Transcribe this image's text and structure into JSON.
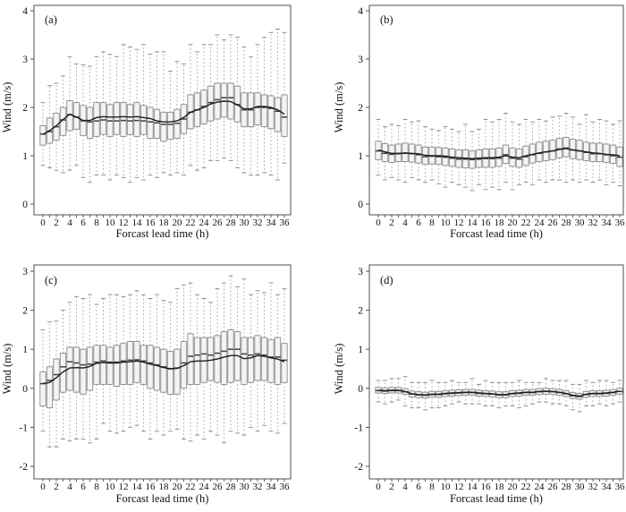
{
  "figure": {
    "background": "#ffffff",
    "colors": {
      "axis": "#4f4f4f",
      "text": "#111111",
      "box_fill": "#f4f4f4",
      "box_edge": "#8c8c8c",
      "whisker": "#a8a8a8",
      "cap": "#8f8f8f",
      "median": "#3f3f3f",
      "mean_line": "#1c1c1c"
    }
  },
  "chart_data": [
    {
      "type": "boxplot",
      "panel_label": "(a)",
      "xlabel": "Forcast lead time (h)",
      "ylabel": "Wind (m/s)",
      "ylim": [
        0,
        4
      ],
      "yticks": [
        0,
        1,
        2,
        3,
        4
      ],
      "xlim": [
        0,
        36
      ],
      "xtick_labeled_step": 2,
      "xtick_minor_step": 1,
      "grid": false,
      "x": [
        0,
        1,
        2,
        3,
        4,
        5,
        6,
        7,
        8,
        9,
        10,
        11,
        12,
        13,
        14,
        15,
        16,
        17,
        18,
        19,
        20,
        21,
        22,
        23,
        24,
        25,
        26,
        27,
        28,
        29,
        30,
        31,
        32,
        33,
        34,
        35,
        36
      ],
      "series": {
        "whisker_low": [
          0.8,
          0.75,
          0.7,
          0.65,
          0.7,
          0.8,
          0.55,
          0.45,
          0.6,
          0.6,
          0.5,
          0.6,
          0.55,
          0.45,
          0.55,
          0.5,
          0.6,
          0.55,
          0.65,
          0.6,
          0.65,
          0.6,
          0.8,
          0.7,
          0.75,
          0.9,
          0.9,
          0.95,
          0.9,
          0.75,
          0.65,
          0.6,
          0.6,
          0.65,
          0.6,
          0.5,
          0.85
        ],
        "q1": [
          1.22,
          1.26,
          1.32,
          1.42,
          1.52,
          1.55,
          1.42,
          1.36,
          1.4,
          1.44,
          1.4,
          1.44,
          1.4,
          1.44,
          1.4,
          1.44,
          1.36,
          1.36,
          1.3,
          1.34,
          1.36,
          1.46,
          1.56,
          1.6,
          1.66,
          1.72,
          1.76,
          1.8,
          1.76,
          1.7,
          1.6,
          1.6,
          1.64,
          1.6,
          1.56,
          1.5,
          1.4
        ],
        "median": [
          1.45,
          1.5,
          1.6,
          1.74,
          1.85,
          1.8,
          1.72,
          1.7,
          1.72,
          1.74,
          1.72,
          1.72,
          1.73,
          1.72,
          1.73,
          1.72,
          1.7,
          1.68,
          1.65,
          1.65,
          1.67,
          1.76,
          1.9,
          1.95,
          2.02,
          2.1,
          2.16,
          2.2,
          2.2,
          2.06,
          1.95,
          1.95,
          2.0,
          2.0,
          1.98,
          1.92,
          1.8
        ],
        "q3": [
          1.62,
          1.78,
          1.88,
          2.0,
          2.14,
          2.1,
          2.04,
          2.0,
          2.1,
          2.1,
          2.06,
          2.1,
          2.1,
          2.06,
          2.1,
          2.04,
          2.0,
          1.96,
          1.9,
          1.9,
          1.96,
          2.06,
          2.26,
          2.3,
          2.36,
          2.44,
          2.5,
          2.5,
          2.5,
          2.44,
          2.3,
          2.3,
          2.3,
          2.26,
          2.24,
          2.2,
          2.26
        ],
        "whisker_high": [
          2.1,
          2.45,
          2.5,
          2.65,
          3.05,
          2.9,
          2.88,
          2.85,
          3.05,
          3.15,
          3.1,
          3.05,
          3.3,
          3.25,
          3.2,
          3.3,
          3.1,
          3.15,
          3.15,
          2.75,
          2.95,
          2.9,
          3.3,
          3.15,
          3.3,
          3.3,
          3.5,
          3.4,
          3.5,
          3.45,
          3.25,
          3.05,
          3.3,
          3.45,
          3.55,
          3.62,
          3.55
        ],
        "mean_line": [
          1.44,
          1.52,
          1.62,
          1.75,
          1.86,
          1.8,
          1.73,
          1.73,
          1.79,
          1.81,
          1.8,
          1.8,
          1.81,
          1.8,
          1.81,
          1.79,
          1.77,
          1.72,
          1.7,
          1.7,
          1.72,
          1.79,
          1.9,
          1.95,
          2.0,
          2.07,
          2.11,
          2.13,
          2.12,
          2.05,
          1.97,
          1.97,
          2.02,
          2.02,
          2.0,
          1.95,
          1.86
        ]
      }
    },
    {
      "type": "boxplot",
      "panel_label": "(b)",
      "xlabel": "Forcast lead time (h)",
      "ylabel": "Wind (m/s)",
      "ylim": [
        0,
        4
      ],
      "yticks": [
        0,
        1,
        2,
        3,
        4
      ],
      "xlim": [
        0,
        36
      ],
      "xtick_labeled_step": 2,
      "xtick_minor_step": 1,
      "grid": false,
      "x": [
        0,
        1,
        2,
        3,
        4,
        5,
        6,
        7,
        8,
        9,
        10,
        11,
        12,
        13,
        14,
        15,
        16,
        17,
        18,
        19,
        20,
        21,
        22,
        23,
        24,
        25,
        26,
        27,
        28,
        29,
        30,
        31,
        32,
        33,
        34,
        35,
        36
      ],
      "series": {
        "whisker_low": [
          0.6,
          0.5,
          0.55,
          0.5,
          0.45,
          0.55,
          0.5,
          0.45,
          0.5,
          0.42,
          0.35,
          0.45,
          0.4,
          0.35,
          0.28,
          0.4,
          0.3,
          0.35,
          0.3,
          0.45,
          0.3,
          0.4,
          0.45,
          0.4,
          0.5,
          0.45,
          0.5,
          0.5,
          0.45,
          0.5,
          0.45,
          0.5,
          0.45,
          0.5,
          0.4,
          0.45,
          0.38
        ],
        "q1": [
          0.92,
          0.88,
          0.86,
          0.88,
          0.88,
          0.87,
          0.85,
          0.82,
          0.83,
          0.82,
          0.8,
          0.78,
          0.76,
          0.75,
          0.74,
          0.76,
          0.76,
          0.76,
          0.78,
          0.84,
          0.78,
          0.76,
          0.8,
          0.85,
          0.88,
          0.9,
          0.92,
          0.96,
          0.98,
          0.94,
          0.92,
          0.9,
          0.88,
          0.88,
          0.86,
          0.84,
          0.78
        ],
        "median": [
          1.1,
          1.05,
          1.03,
          1.04,
          1.05,
          1.04,
          1.02,
          0.98,
          0.99,
          0.98,
          0.97,
          0.95,
          0.93,
          0.93,
          0.92,
          0.93,
          0.94,
          0.94,
          0.95,
          1.02,
          0.95,
          0.93,
          0.98,
          1.02,
          1.05,
          1.08,
          1.1,
          1.14,
          1.16,
          1.12,
          1.1,
          1.07,
          1.04,
          1.04,
          1.02,
          1.0,
          0.97
        ],
        "q3": [
          1.3,
          1.25,
          1.22,
          1.24,
          1.26,
          1.24,
          1.22,
          1.18,
          1.18,
          1.17,
          1.16,
          1.14,
          1.12,
          1.12,
          1.1,
          1.12,
          1.14,
          1.14,
          1.16,
          1.22,
          1.16,
          1.14,
          1.2,
          1.24,
          1.28,
          1.3,
          1.32,
          1.36,
          1.38,
          1.34,
          1.32,
          1.28,
          1.26,
          1.26,
          1.24,
          1.22,
          1.18
        ],
        "whisker_high": [
          1.75,
          1.6,
          1.65,
          1.62,
          1.75,
          1.7,
          1.72,
          1.6,
          1.55,
          1.52,
          1.6,
          1.55,
          1.5,
          1.65,
          1.5,
          1.55,
          1.75,
          1.7,
          1.75,
          1.88,
          1.7,
          1.65,
          1.75,
          1.7,
          1.75,
          1.72,
          1.8,
          1.82,
          1.88,
          1.8,
          1.65,
          1.85,
          1.7,
          1.75,
          1.72,
          1.65,
          1.72
        ],
        "mean_line": [
          1.12,
          1.08,
          1.05,
          1.05,
          1.06,
          1.05,
          1.04,
          1.01,
          1.0,
          1.0,
          0.99,
          0.97,
          0.96,
          0.95,
          0.94,
          0.95,
          0.96,
          0.96,
          0.97,
          1.0,
          0.97,
          0.96,
          1.0,
          1.03,
          1.06,
          1.08,
          1.1,
          1.13,
          1.15,
          1.12,
          1.1,
          1.08,
          1.06,
          1.05,
          1.03,
          1.02,
          1.0
        ]
      }
    },
    {
      "type": "boxplot",
      "panel_label": "(c)",
      "xlabel": "Forcast lead time (h)",
      "ylabel": "Wind (m/s)",
      "ylim": [
        -2,
        3
      ],
      "yticks": [
        -2,
        -1,
        0,
        1,
        2,
        3
      ],
      "xlim": [
        0,
        36
      ],
      "xtick_labeled_step": 2,
      "xtick_minor_step": 1,
      "grid": false,
      "x": [
        0,
        1,
        2,
        3,
        4,
        5,
        6,
        7,
        8,
        9,
        10,
        11,
        12,
        13,
        14,
        15,
        16,
        17,
        18,
        19,
        20,
        21,
        22,
        23,
        24,
        25,
        26,
        27,
        28,
        29,
        30,
        31,
        32,
        33,
        34,
        35,
        36
      ],
      "series": {
        "whisker_low": [
          -1.1,
          -1.5,
          -1.5,
          -1.3,
          -1.35,
          -1.3,
          -1.3,
          -1.4,
          -1.3,
          -0.9,
          -1.1,
          -1.15,
          -1.1,
          -1.0,
          -0.95,
          -1.1,
          -1.3,
          -1.1,
          -1.2,
          -1.1,
          -1.05,
          -1.3,
          -1.35,
          -1.2,
          -1.3,
          -1.1,
          -1.2,
          -1.4,
          -1.1,
          -1.15,
          -1.2,
          -1.0,
          -1.1,
          -0.95,
          -1.1,
          -1.15,
          -0.9
        ],
        "q1": [
          -0.45,
          -0.5,
          -0.3,
          -0.1,
          -0.05,
          -0.1,
          -0.15,
          -0.05,
          0.1,
          0.1,
          0.1,
          0.05,
          0.1,
          0.1,
          0.15,
          0.1,
          0.0,
          -0.05,
          -0.1,
          -0.15,
          -0.15,
          0.0,
          0.1,
          0.1,
          0.15,
          0.2,
          0.15,
          0.1,
          0.15,
          0.2,
          0.1,
          0.15,
          0.2,
          0.2,
          0.15,
          0.1,
          0.15
        ],
        "median": [
          0.12,
          0.2,
          0.35,
          0.55,
          0.68,
          0.65,
          0.6,
          0.62,
          0.67,
          0.7,
          0.67,
          0.67,
          0.7,
          0.72,
          0.73,
          0.7,
          0.65,
          0.6,
          0.55,
          0.5,
          0.52,
          0.65,
          0.82,
          0.85,
          0.88,
          0.85,
          0.9,
          0.95,
          1.0,
          1.0,
          0.88,
          0.85,
          0.88,
          0.85,
          0.8,
          0.8,
          0.72
        ],
        "q3": [
          0.42,
          0.55,
          0.75,
          0.9,
          1.05,
          1.05,
          1.0,
          1.05,
          1.1,
          1.1,
          1.05,
          1.1,
          1.15,
          1.2,
          1.2,
          1.1,
          1.1,
          1.05,
          1.0,
          0.95,
          1.0,
          1.2,
          1.4,
          1.3,
          1.3,
          1.3,
          1.35,
          1.45,
          1.5,
          1.45,
          1.3,
          1.3,
          1.35,
          1.3,
          1.25,
          1.3,
          1.15
        ],
        "whisker_high": [
          1.5,
          1.7,
          1.72,
          2.0,
          2.2,
          2.35,
          2.3,
          2.4,
          2.15,
          2.3,
          2.4,
          2.4,
          2.35,
          2.4,
          2.5,
          2.4,
          2.3,
          2.4,
          2.25,
          2.2,
          2.55,
          2.65,
          2.7,
          2.4,
          2.3,
          2.2,
          2.55,
          2.7,
          2.88,
          2.6,
          2.8,
          2.4,
          2.5,
          2.45,
          2.7,
          2.4,
          2.55
        ],
        "mean_line": [
          0.12,
          0.15,
          0.27,
          0.42,
          0.52,
          0.53,
          0.52,
          0.56,
          0.64,
          0.66,
          0.65,
          0.65,
          0.67,
          0.68,
          0.7,
          0.67,
          0.62,
          0.58,
          0.53,
          0.5,
          0.51,
          0.58,
          0.68,
          0.7,
          0.7,
          0.72,
          0.75,
          0.8,
          0.84,
          0.84,
          0.76,
          0.78,
          0.84,
          0.82,
          0.78,
          0.75,
          0.68
        ]
      }
    },
    {
      "type": "boxplot",
      "panel_label": "(d)",
      "xlabel": "Forcast lead time (h)",
      "ylabel": "Wind (m/s)",
      "ylim": [
        -2,
        3
      ],
      "yticks": [
        -2,
        -1,
        0,
        1,
        2,
        3
      ],
      "xlim": [
        0,
        36
      ],
      "xtick_labeled_step": 2,
      "xtick_minor_step": 1,
      "grid": false,
      "x": [
        0,
        1,
        2,
        3,
        4,
        5,
        6,
        7,
        8,
        9,
        10,
        11,
        12,
        13,
        14,
        15,
        16,
        17,
        18,
        19,
        20,
        21,
        22,
        23,
        24,
        25,
        26,
        27,
        28,
        29,
        30,
        31,
        32,
        33,
        34,
        35,
        36
      ],
      "series": {
        "whisker_low": [
          -0.35,
          -0.4,
          -0.35,
          -0.3,
          -0.45,
          -0.5,
          -0.5,
          -0.55,
          -0.5,
          -0.5,
          -0.45,
          -0.4,
          -0.35,
          -0.4,
          -0.4,
          -0.4,
          -0.45,
          -0.45,
          -0.5,
          -0.45,
          -0.45,
          -0.5,
          -0.45,
          -0.4,
          -0.35,
          -0.35,
          -0.4,
          -0.4,
          -0.45,
          -0.55,
          -0.6,
          -0.45,
          -0.45,
          -0.4,
          -0.45,
          -0.4,
          -0.35
        ],
        "q1": [
          -0.12,
          -0.13,
          -0.12,
          -0.12,
          -0.16,
          -0.22,
          -0.24,
          -0.25,
          -0.23,
          -0.23,
          -0.21,
          -0.2,
          -0.19,
          -0.18,
          -0.18,
          -0.2,
          -0.21,
          -0.22,
          -0.24,
          -0.24,
          -0.21,
          -0.2,
          -0.18,
          -0.18,
          -0.16,
          -0.15,
          -0.16,
          -0.18,
          -0.21,
          -0.26,
          -0.28,
          -0.23,
          -0.21,
          -0.21,
          -0.2,
          -0.18,
          -0.15
        ],
        "median": [
          -0.06,
          -0.07,
          -0.06,
          -0.06,
          -0.09,
          -0.15,
          -0.17,
          -0.18,
          -0.16,
          -0.16,
          -0.14,
          -0.13,
          -0.12,
          -0.11,
          -0.11,
          -0.13,
          -0.14,
          -0.15,
          -0.17,
          -0.17,
          -0.14,
          -0.13,
          -0.11,
          -0.11,
          -0.09,
          -0.08,
          -0.09,
          -0.11,
          -0.14,
          -0.19,
          -0.21,
          -0.16,
          -0.14,
          -0.14,
          -0.13,
          -0.11,
          -0.08
        ],
        "q3": [
          0.02,
          0.01,
          0.02,
          0.02,
          -0.01,
          -0.07,
          -0.09,
          -0.1,
          -0.08,
          -0.08,
          -0.06,
          -0.05,
          -0.04,
          -0.03,
          -0.03,
          -0.05,
          -0.06,
          -0.07,
          -0.09,
          -0.09,
          -0.06,
          -0.05,
          -0.03,
          -0.03,
          -0.01,
          0.0,
          -0.01,
          -0.03,
          -0.06,
          -0.11,
          -0.13,
          -0.08,
          -0.06,
          -0.06,
          -0.05,
          -0.03,
          0.0
        ],
        "whisker_high": [
          0.2,
          0.2,
          0.25,
          0.25,
          0.3,
          0.15,
          0.15,
          0.15,
          0.2,
          0.15,
          0.15,
          0.2,
          0.15,
          0.15,
          0.25,
          0.1,
          0.2,
          0.15,
          0.15,
          0.15,
          0.15,
          0.2,
          0.15,
          0.15,
          0.15,
          0.25,
          0.2,
          0.2,
          0.2,
          0.1,
          0.1,
          0.2,
          0.15,
          0.2,
          0.2,
          0.15,
          0.2
        ],
        "mean_line": [
          -0.05,
          -0.06,
          -0.05,
          -0.05,
          -0.08,
          -0.14,
          -0.16,
          -0.17,
          -0.15,
          -0.15,
          -0.13,
          -0.12,
          -0.11,
          -0.1,
          -0.1,
          -0.12,
          -0.13,
          -0.14,
          -0.16,
          -0.16,
          -0.13,
          -0.12,
          -0.1,
          -0.1,
          -0.08,
          -0.07,
          -0.08,
          -0.1,
          -0.13,
          -0.18,
          -0.2,
          -0.15,
          -0.13,
          -0.13,
          -0.12,
          -0.1,
          -0.07
        ]
      }
    }
  ]
}
